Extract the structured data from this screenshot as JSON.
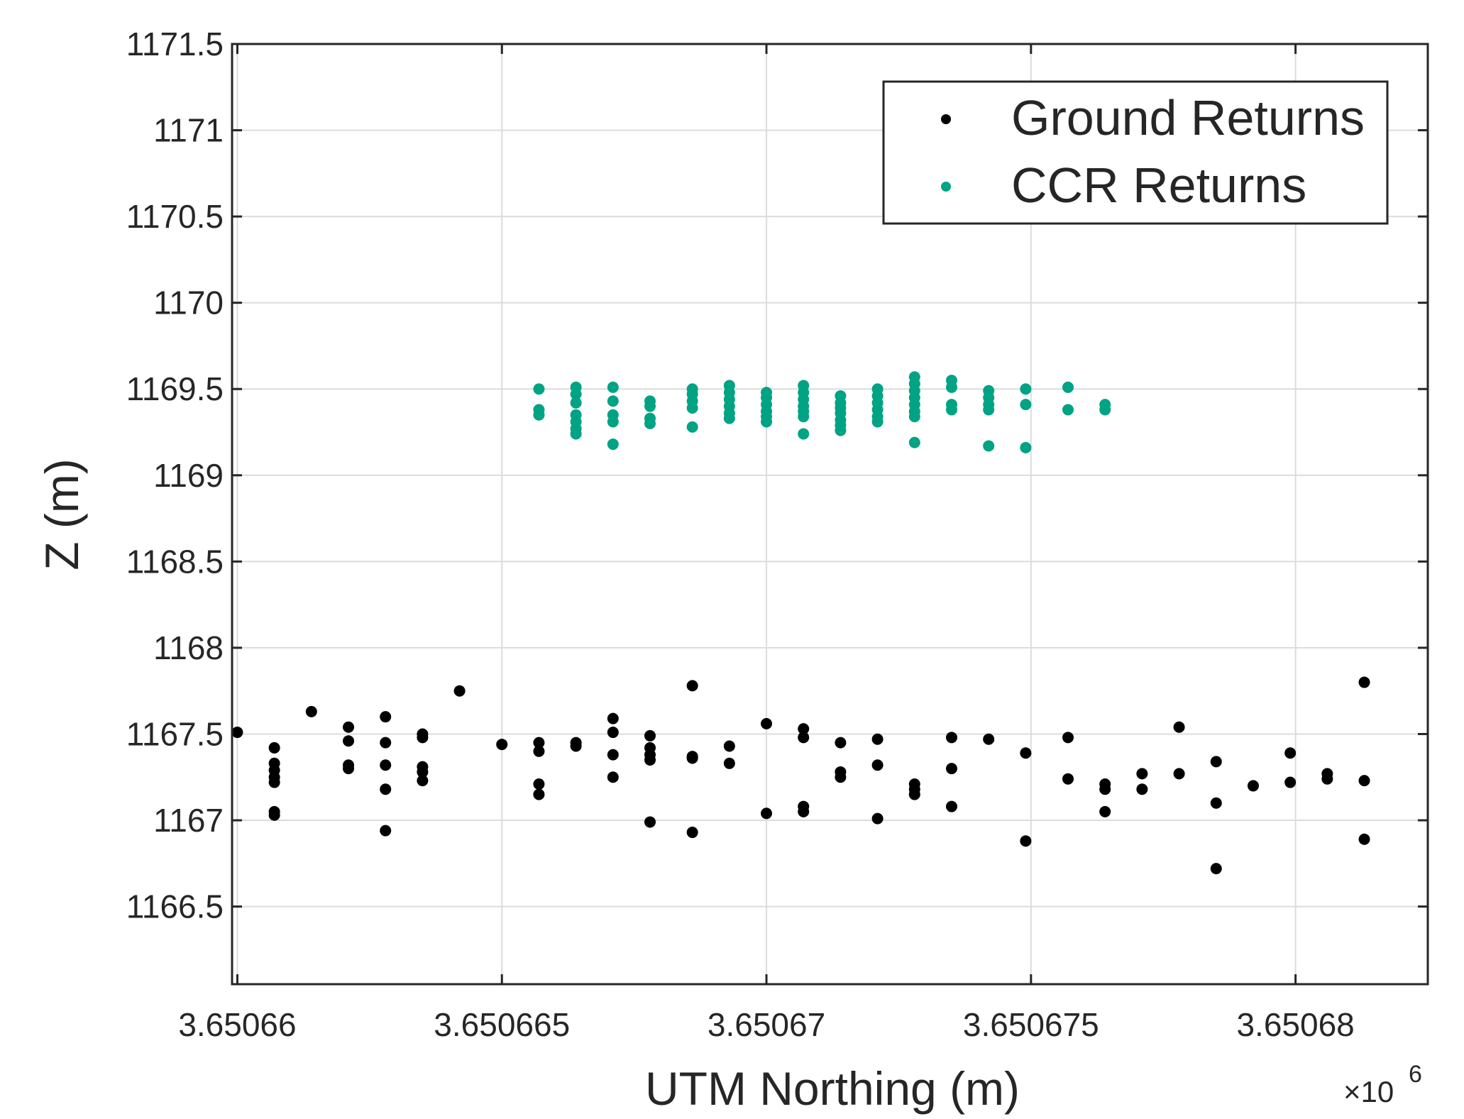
{
  "chart_data": {
    "type": "scatter",
    "title": "",
    "xlabel": "UTM Northing (m)",
    "ylabel": "Z (m)",
    "x_exponent_label": "×10",
    "x_exponent_power": "6",
    "xlim": [
      3650659.9,
      3650682.5
    ],
    "ylim": [
      1166.05,
      1171.5
    ],
    "x_ticks": [
      {
        "value": 3650660,
        "label": "3.65066"
      },
      {
        "value": 3650665,
        "label": "3.650665"
      },
      {
        "value": 3650670,
        "label": "3.65067"
      },
      {
        "value": 3650675,
        "label": "3.650675"
      },
      {
        "value": 3650680,
        "label": "3.65068"
      }
    ],
    "y_ticks": [
      {
        "value": 1166.5,
        "label": "1166.5"
      },
      {
        "value": 1167,
        "label": "1167"
      },
      {
        "value": 1167.5,
        "label": "1167.5"
      },
      {
        "value": 1168,
        "label": "1168"
      },
      {
        "value": 1168.5,
        "label": "1168.5"
      },
      {
        "value": 1169,
        "label": "1169"
      },
      {
        "value": 1169.5,
        "label": "1169.5"
      },
      {
        "value": 1170,
        "label": "1170"
      },
      {
        "value": 1170.5,
        "label": "1170.5"
      },
      {
        "value": 1171,
        "label": "1171"
      },
      {
        "value": 1171.5,
        "label": "1171.5"
      }
    ],
    "grid": true,
    "legend_position": "top-right",
    "series": [
      {
        "name": "Ground Returns",
        "color": "#000000",
        "points": [
          [
            3650660,
            1167.51
          ],
          [
            3650660.7,
            1167.42
          ],
          [
            3650660.7,
            1167.33
          ],
          [
            3650660.7,
            1167.29
          ],
          [
            3650660.7,
            1167.25
          ],
          [
            3650660.7,
            1167.22
          ],
          [
            3650660.7,
            1167.05
          ],
          [
            3650660.7,
            1167.03
          ],
          [
            3650661.4,
            1167.63
          ],
          [
            3650662.1,
            1167.54
          ],
          [
            3650662.1,
            1167.46
          ],
          [
            3650662.1,
            1167.32
          ],
          [
            3650662.1,
            1167.3
          ],
          [
            3650662.8,
            1167.6
          ],
          [
            3650662.8,
            1167.45
          ],
          [
            3650662.8,
            1167.32
          ],
          [
            3650662.8,
            1167.18
          ],
          [
            3650662.8,
            1166.94
          ],
          [
            3650663.5,
            1167.5
          ],
          [
            3650663.5,
            1167.48
          ],
          [
            3650663.5,
            1167.31
          ],
          [
            3650663.5,
            1167.28
          ],
          [
            3650663.5,
            1167.23
          ],
          [
            3650664.2,
            1167.75
          ],
          [
            3650665,
            1167.44
          ],
          [
            3650665.7,
            1167.45
          ],
          [
            3650665.7,
            1167.4
          ],
          [
            3650665.7,
            1167.21
          ],
          [
            3650665.7,
            1167.15
          ],
          [
            3650666.4,
            1167.45
          ],
          [
            3650666.4,
            1167.43
          ],
          [
            3650667.1,
            1167.59
          ],
          [
            3650667.1,
            1167.51
          ],
          [
            3650667.1,
            1167.38
          ],
          [
            3650667.1,
            1167.25
          ],
          [
            3650667.8,
            1167.49
          ],
          [
            3650667.8,
            1167.42
          ],
          [
            3650667.8,
            1167.38
          ],
          [
            3650667.8,
            1167.35
          ],
          [
            3650667.8,
            1166.99
          ],
          [
            3650668.6,
            1167.78
          ],
          [
            3650668.6,
            1167.37
          ],
          [
            3650668.6,
            1167.36
          ],
          [
            3650668.6,
            1166.93
          ],
          [
            3650669.3,
            1167.43
          ],
          [
            3650669.3,
            1167.33
          ],
          [
            3650670,
            1167.56
          ],
          [
            3650670,
            1167.04
          ],
          [
            3650670.7,
            1167.53
          ],
          [
            3650670.7,
            1167.48
          ],
          [
            3650670.7,
            1167.08
          ],
          [
            3650670.7,
            1167.05
          ],
          [
            3650671.4,
            1167.45
          ],
          [
            3650671.4,
            1167.28
          ],
          [
            3650671.4,
            1167.25
          ],
          [
            3650672.1,
            1167.47
          ],
          [
            3650672.1,
            1167.32
          ],
          [
            3650672.1,
            1167.01
          ],
          [
            3650672.8,
            1167.21
          ],
          [
            3650672.8,
            1167.18
          ],
          [
            3650672.8,
            1167.15
          ],
          [
            3650673.5,
            1167.48
          ],
          [
            3650673.5,
            1167.3
          ],
          [
            3650673.5,
            1167.08
          ],
          [
            3650674.2,
            1167.47
          ],
          [
            3650674.9,
            1167.39
          ],
          [
            3650674.9,
            1166.88
          ],
          [
            3650675.7,
            1167.48
          ],
          [
            3650675.7,
            1167.24
          ],
          [
            3650676.4,
            1167.21
          ],
          [
            3650676.4,
            1167.18
          ],
          [
            3650676.4,
            1167.05
          ],
          [
            3650677.1,
            1167.27
          ],
          [
            3650677.1,
            1167.18
          ],
          [
            3650677.8,
            1167.54
          ],
          [
            3650677.8,
            1167.27
          ],
          [
            3650678.5,
            1167.34
          ],
          [
            3650678.5,
            1167.1
          ],
          [
            3650678.5,
            1166.72
          ],
          [
            3650679.2,
            1167.2
          ],
          [
            3650679.9,
            1167.39
          ],
          [
            3650679.9,
            1167.22
          ],
          [
            3650680.6,
            1167.27
          ],
          [
            3650680.6,
            1167.24
          ],
          [
            3650681.3,
            1167.8
          ],
          [
            3650681.3,
            1167.23
          ],
          [
            3650681.3,
            1166.89
          ]
        ]
      },
      {
        "name": "CCR Returns",
        "color": "#00a383",
        "points": [
          [
            3650665.7,
            1169.5
          ],
          [
            3650665.7,
            1169.38
          ],
          [
            3650665.7,
            1169.35
          ],
          [
            3650666.4,
            1169.51
          ],
          [
            3650666.4,
            1169.47
          ],
          [
            3650666.4,
            1169.42
          ],
          [
            3650666.4,
            1169.35
          ],
          [
            3650666.4,
            1169.31
          ],
          [
            3650666.4,
            1169.27
          ],
          [
            3650666.4,
            1169.24
          ],
          [
            3650667.1,
            1169.51
          ],
          [
            3650667.1,
            1169.43
          ],
          [
            3650667.1,
            1169.35
          ],
          [
            3650667.1,
            1169.31
          ],
          [
            3650667.1,
            1169.18
          ],
          [
            3650667.8,
            1169.43
          ],
          [
            3650667.8,
            1169.4
          ],
          [
            3650667.8,
            1169.33
          ],
          [
            3650667.8,
            1169.3
          ],
          [
            3650668.6,
            1169.5
          ],
          [
            3650668.6,
            1169.47
          ],
          [
            3650668.6,
            1169.43
          ],
          [
            3650668.6,
            1169.39
          ],
          [
            3650668.6,
            1169.28
          ],
          [
            3650669.3,
            1169.52
          ],
          [
            3650669.3,
            1169.48
          ],
          [
            3650669.3,
            1169.44
          ],
          [
            3650669.3,
            1169.4
          ],
          [
            3650669.3,
            1169.36
          ],
          [
            3650669.3,
            1169.33
          ],
          [
            3650670,
            1169.48
          ],
          [
            3650670,
            1169.45
          ],
          [
            3650670,
            1169.41
          ],
          [
            3650670,
            1169.37
          ],
          [
            3650670,
            1169.34
          ],
          [
            3650670,
            1169.31
          ],
          [
            3650670.7,
            1169.52
          ],
          [
            3650670.7,
            1169.48
          ],
          [
            3650670.7,
            1169.44
          ],
          [
            3650670.7,
            1169.4
          ],
          [
            3650670.7,
            1169.37
          ],
          [
            3650670.7,
            1169.34
          ],
          [
            3650670.7,
            1169.24
          ],
          [
            3650671.4,
            1169.46
          ],
          [
            3650671.4,
            1169.42
          ],
          [
            3650671.4,
            1169.39
          ],
          [
            3650671.4,
            1169.36
          ],
          [
            3650671.4,
            1169.32
          ],
          [
            3650671.4,
            1169.29
          ],
          [
            3650671.4,
            1169.26
          ],
          [
            3650672.1,
            1169.5
          ],
          [
            3650672.1,
            1169.46
          ],
          [
            3650672.1,
            1169.42
          ],
          [
            3650672.1,
            1169.38
          ],
          [
            3650672.1,
            1169.34
          ],
          [
            3650672.1,
            1169.31
          ],
          [
            3650672.8,
            1169.57
          ],
          [
            3650672.8,
            1169.53
          ],
          [
            3650672.8,
            1169.49
          ],
          [
            3650672.8,
            1169.45
          ],
          [
            3650672.8,
            1169.41
          ],
          [
            3650672.8,
            1169.37
          ],
          [
            3650672.8,
            1169.34
          ],
          [
            3650672.8,
            1169.19
          ],
          [
            3650673.5,
            1169.55
          ],
          [
            3650673.5,
            1169.51
          ],
          [
            3650673.5,
            1169.41
          ],
          [
            3650673.5,
            1169.38
          ],
          [
            3650674.2,
            1169.49
          ],
          [
            3650674.2,
            1169.45
          ],
          [
            3650674.2,
            1169.41
          ],
          [
            3650674.2,
            1169.38
          ],
          [
            3650674.2,
            1169.17
          ],
          [
            3650674.9,
            1169.5
          ],
          [
            3650674.9,
            1169.41
          ],
          [
            3650674.9,
            1169.16
          ],
          [
            3650675.7,
            1169.51
          ],
          [
            3650675.7,
            1169.38
          ],
          [
            3650676.4,
            1169.41
          ],
          [
            3650676.4,
            1169.38
          ]
        ]
      }
    ]
  }
}
